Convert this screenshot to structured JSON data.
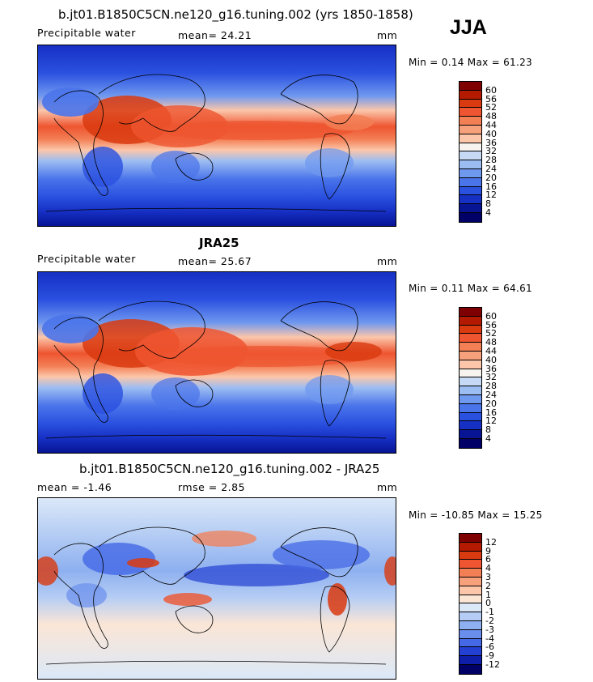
{
  "season": "JJA",
  "panels": [
    {
      "title": "b.jt01.B1850C5CN.ne120_g16.tuning.002 (yrs 1850-1858)",
      "variable": "Precipitable water",
      "mean": "mean=   24.21",
      "units": "mm",
      "minmax": "Min =    0.14 Max =   61.23",
      "scale": [
        "60",
        "56",
        "52",
        "48",
        "44",
        "40",
        "36",
        "32",
        "28",
        "24",
        "20",
        "16",
        "12",
        "8",
        "4"
      ],
      "colors": [
        "#7f0000",
        "#b31a00",
        "#d93a0f",
        "#ee5530",
        "#f37f55",
        "#f7a07c",
        "#fbc6aa",
        "#f7f3ee",
        "#c6daf5",
        "#9cbdf2",
        "#6f98ef",
        "#4a74ea",
        "#2a50e0",
        "#1630c4",
        "#071494",
        "#000067"
      ]
    },
    {
      "title": "JRA25",
      "variable": "Precipitable water",
      "mean": "mean=   25.67",
      "units": "mm",
      "minmax": "Min =    0.11 Max =   64.61",
      "scale": [
        "60",
        "56",
        "52",
        "48",
        "44",
        "40",
        "36",
        "32",
        "28",
        "24",
        "20",
        "16",
        "12",
        "8",
        "4"
      ],
      "colors": [
        "#7f0000",
        "#b31a00",
        "#d93a0f",
        "#ee5530",
        "#f37f55",
        "#f7a07c",
        "#fbc6aa",
        "#f7f3ee",
        "#c6daf5",
        "#9cbdf2",
        "#6f98ef",
        "#4a74ea",
        "#2a50e0",
        "#1630c4",
        "#071494",
        "#000067"
      ]
    },
    {
      "title": "b.jt01.B1850C5CN.ne120_g16.tuning.002 - JRA25",
      "variable": "mean =   -1.46",
      "mean": "rmse =    2.85",
      "units": "mm",
      "minmax": "Min = -10.85 Max =   15.25",
      "scale": [
        "12",
        "9",
        "6",
        "4",
        "3",
        "2",
        "1",
        "0",
        "-1",
        "-2",
        "-3",
        "-4",
        "-6",
        "-9",
        "-12"
      ],
      "colors": [
        "#7f0000",
        "#b31a00",
        "#d93a0f",
        "#ee5530",
        "#f37f55",
        "#f7a07c",
        "#fbc6aa",
        "#fbe6d6",
        "#dbe8f8",
        "#b5cdf4",
        "#8eb0f0",
        "#6a8eec",
        "#4468e6",
        "#2440d2",
        "#0e1ea8",
        "#000067"
      ]
    }
  ]
}
